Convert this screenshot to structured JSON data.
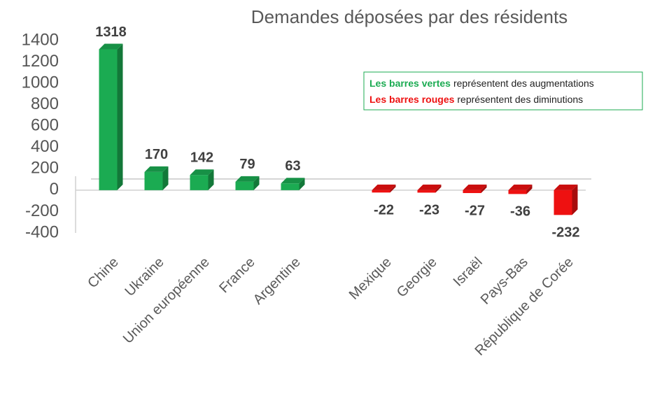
{
  "chart_data": {
    "type": "bar3d",
    "title": "Demandes déposées par des résidents",
    "categories": [
      "Chine",
      "Ukraine",
      "Union européenne",
      "France",
      "Argentine",
      null,
      "Mexique",
      "Georgie",
      "Israël",
      "Pays-Bas",
      "République de Corée"
    ],
    "values": [
      1318,
      170,
      142,
      79,
      63,
      null,
      -22,
      -23,
      -27,
      -36,
      -232
    ],
    "positive_color": "#1bab52",
    "negative_color": "#ee1111",
    "ylim": [
      -400,
      1400
    ],
    "yticks": [
      -400,
      -200,
      0,
      200,
      400,
      600,
      800,
      1000,
      1200,
      1400
    ],
    "legend_notes": [
      {
        "emphasis": "Les barres vertes",
        "text": "représentent des augmentations"
      },
      {
        "emphasis": "Les barres rouges",
        "text": "représentent des diminutions"
      }
    ]
  }
}
